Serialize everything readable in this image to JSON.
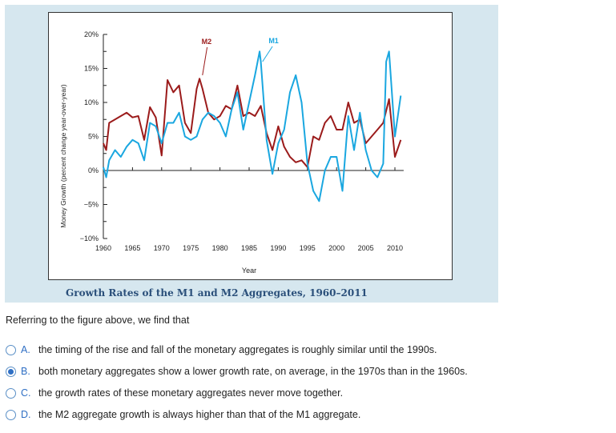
{
  "chart_data": {
    "type": "line",
    "title": "Growth Rates of the M1 and M2 Aggregates, 1960–2011",
    "xlabel": "Year",
    "ylabel": "Money Growth (percent change year-over-year)",
    "xlim": [
      1960,
      2011
    ],
    "ylim": [
      -10,
      20
    ],
    "xticks": [
      "1960",
      "1965",
      "1970",
      "1975",
      "1980",
      "1985",
      "1990",
      "1995",
      "2000",
      "2005",
      "2010"
    ],
    "yticks": [
      "20%",
      "15%",
      "10%",
      "5%",
      "0%",
      "−5%",
      "−10%"
    ],
    "grid": false,
    "series": [
      {
        "name": "M2",
        "color": "#9b1b1b",
        "x": [
          1960,
          1960.5,
          1961,
          1962,
          1963,
          1964,
          1965,
          1966,
          1967,
          1968,
          1969,
          1970,
          1971,
          1972,
          1973,
          1974,
          1975,
          1976,
          1976.5,
          1977,
          1978,
          1979,
          1980,
          1981,
          1982,
          1983,
          1984,
          1985,
          1986,
          1987,
          1988,
          1989,
          1990,
          1991,
          1992,
          1993,
          1994,
          1995,
          1996,
          1997,
          1998,
          1999,
          2000,
          2001,
          2002,
          2003,
          2004,
          2005,
          2006,
          2007,
          2008,
          2009,
          2010,
          2011
        ],
        "y": [
          4,
          3,
          7,
          7.5,
          8,
          8.5,
          7.8,
          8,
          4.5,
          9.3,
          7.8,
          2.2,
          13.3,
          11.5,
          12.5,
          7,
          5.5,
          12,
          13.5,
          12,
          8.5,
          7.5,
          8,
          9.5,
          9,
          12.5,
          8,
          8.5,
          8,
          9.5,
          5.5,
          3,
          6.5,
          3.5,
          2,
          1.2,
          1.5,
          0.5,
          5,
          4.5,
          7,
          8,
          6,
          6,
          10,
          7,
          7.5,
          4,
          5,
          6,
          7,
          10.5,
          2,
          4.5
        ]
      },
      {
        "name": "M1",
        "color": "#1aa7e0",
        "x": [
          1960,
          1960.5,
          1961,
          1962,
          1963,
          1964,
          1965,
          1966,
          1967,
          1968,
          1969,
          1970,
          1971,
          1972,
          1973,
          1974,
          1975,
          1976,
          1977,
          1978,
          1979,
          1980,
          1981,
          1982,
          1983,
          1984,
          1985,
          1986,
          1986.8,
          1987,
          1988,
          1989,
          1990,
          1991,
          1992,
          1993,
          1994,
          1995,
          1996,
          1997,
          1998,
          1999,
          2000,
          2001,
          2002,
          2003,
          2004,
          2005,
          2006,
          2007,
          2008,
          2008.5,
          2009,
          2010,
          2011
        ],
        "y": [
          0.5,
          -1,
          1.5,
          3,
          2,
          3.5,
          4.5,
          4,
          1.5,
          7,
          6.5,
          4,
          7,
          7,
          8.5,
          5,
          4.5,
          5,
          7.5,
          8.5,
          8,
          7,
          5,
          9,
          11.5,
          6,
          10,
          14,
          17.5,
          16,
          4.5,
          -0.5,
          4,
          6,
          11.5,
          14,
          10,
          1,
          -3,
          -4.5,
          0,
          2,
          2,
          -3,
          8,
          3,
          8.5,
          3,
          0,
          -1,
          1,
          16,
          17.5,
          5,
          11
        ]
      }
    ]
  },
  "question": "Referring to the figure above, we find that",
  "options": [
    {
      "letter": "A.",
      "text": "the timing of the rise and fall of the monetary aggregates is roughly similar until the 1990s.",
      "selected": false
    },
    {
      "letter": "B.",
      "text": "both monetary aggregates show a lower growth rate, on average, in the 1970s than in the 1960s.",
      "selected": true
    },
    {
      "letter": "C.",
      "text": "the growth rates of these monetary aggregates never move together.",
      "selected": false
    },
    {
      "letter": "D.",
      "text": "the M2 aggregate growth is always higher than that of the M1 aggregate.",
      "selected": false
    }
  ]
}
